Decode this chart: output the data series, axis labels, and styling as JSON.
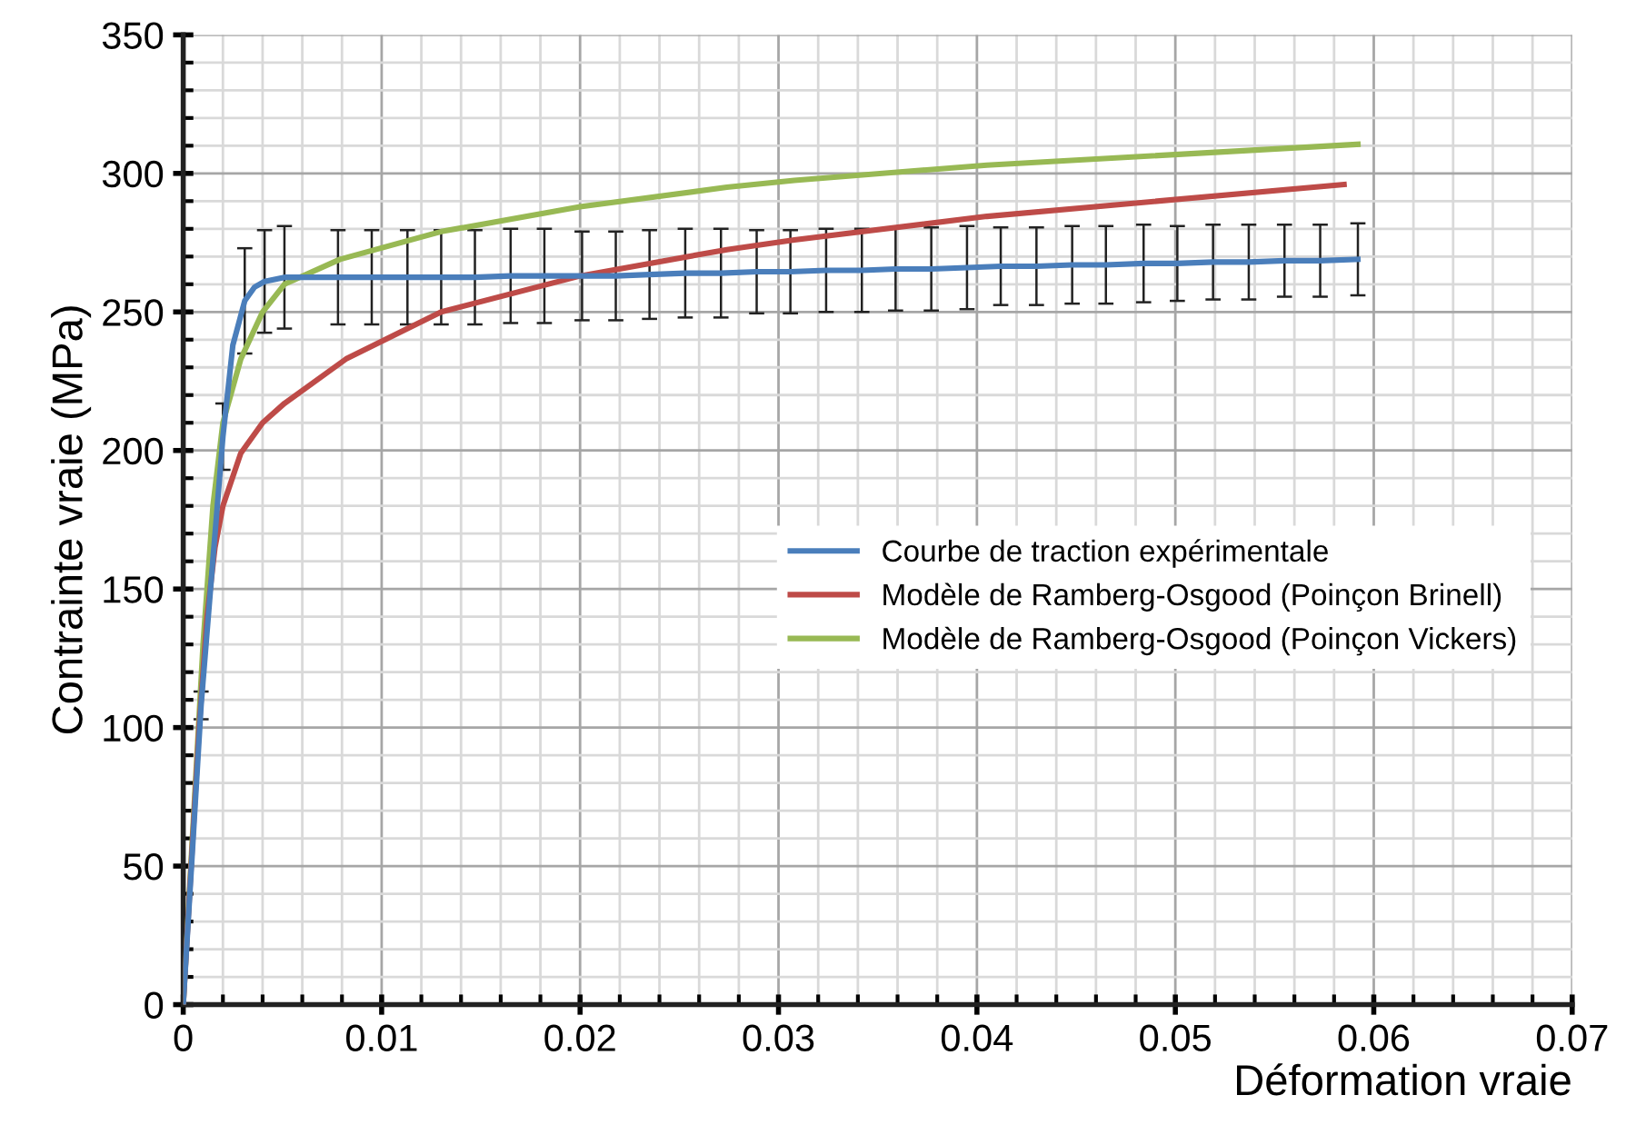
{
  "chart_data": {
    "type": "line",
    "xlabel": "Déformation vraie",
    "ylabel": "Contrainte vraie (MPa)",
    "xlim": [
      0,
      0.07
    ],
    "xticks": [
      0,
      0.01,
      0.02,
      0.03,
      0.04,
      0.05,
      0.06,
      0.07
    ],
    "ylim": [
      0,
      350
    ],
    "yticks": [
      0,
      50,
      100,
      150,
      200,
      250,
      300,
      350
    ],
    "grid": true,
    "legend": "right",
    "marker": "none",
    "line_style": "solid",
    "series": [
      {
        "name": "Courbe de traction expérimentale",
        "color": "#4a7ebb",
        "x": [
          0,
          0.0009,
          0.002,
          0.0025,
          0.0031,
          0.0036,
          0.0041,
          0.0051,
          0.0078,
          0.0095,
          0.0113,
          0.013,
          0.0147,
          0.0165,
          0.0182,
          0.0201,
          0.0218,
          0.0235,
          0.0253,
          0.0271,
          0.0289,
          0.0306,
          0.0324,
          0.0342,
          0.0359,
          0.0377,
          0.0395,
          0.0412,
          0.043,
          0.0448,
          0.0465,
          0.0484,
          0.0501,
          0.0519,
          0.0537,
          0.0555,
          0.0573,
          0.0592
        ],
        "values": [
          0,
          108,
          205,
          238,
          254,
          259,
          261,
          262.5,
          262.5,
          262.5,
          262.5,
          262.5,
          262.5,
          263,
          263,
          263,
          263,
          263.5,
          264,
          264,
          264.5,
          264.5,
          265,
          265,
          265.5,
          265.5,
          266,
          266.5,
          266.5,
          267,
          267,
          267.5,
          267.5,
          268,
          268,
          268.5,
          268.5,
          269
        ],
        "errors": [
          null,
          5,
          12,
          null,
          19,
          null,
          18.5,
          18.5,
          17,
          17,
          17,
          17,
          17,
          17,
          17,
          16,
          16,
          16,
          16,
          16,
          15,
          15,
          15,
          15,
          15,
          15,
          15,
          14,
          14,
          14,
          14,
          14,
          13.5,
          13.5,
          13.5,
          13,
          13,
          13
        ]
      },
      {
        "name": "Modèle de Ramberg-Osgood (Poinçon Brinell)",
        "color": "#be4b48",
        "x": [
          0,
          0.0008,
          0.0012,
          0.0016,
          0.002,
          0.0029,
          0.004,
          0.0051,
          0.0082,
          0.013,
          0.02,
          0.0274,
          0.0308,
          0.0405,
          0.0585
        ],
        "values": [
          0,
          100,
          140,
          165,
          180,
          199,
          210,
          217,
          233,
          250,
          263,
          272.5,
          276,
          284.5,
          296
        ]
      },
      {
        "name": "Modèle de Ramberg-Osgood (Poinçon Vickers)",
        "color": "#98b954",
        "x": [
          0,
          0.001,
          0.0015,
          0.002,
          0.0029,
          0.004,
          0.0051,
          0.0079,
          0.013,
          0.02,
          0.0274,
          0.0308,
          0.0405,
          0.0592
        ],
        "values": [
          0,
          130,
          180,
          210,
          233,
          250,
          260,
          269,
          279,
          288,
          295,
          297.5,
          303,
          310.5
        ]
      }
    ]
  }
}
